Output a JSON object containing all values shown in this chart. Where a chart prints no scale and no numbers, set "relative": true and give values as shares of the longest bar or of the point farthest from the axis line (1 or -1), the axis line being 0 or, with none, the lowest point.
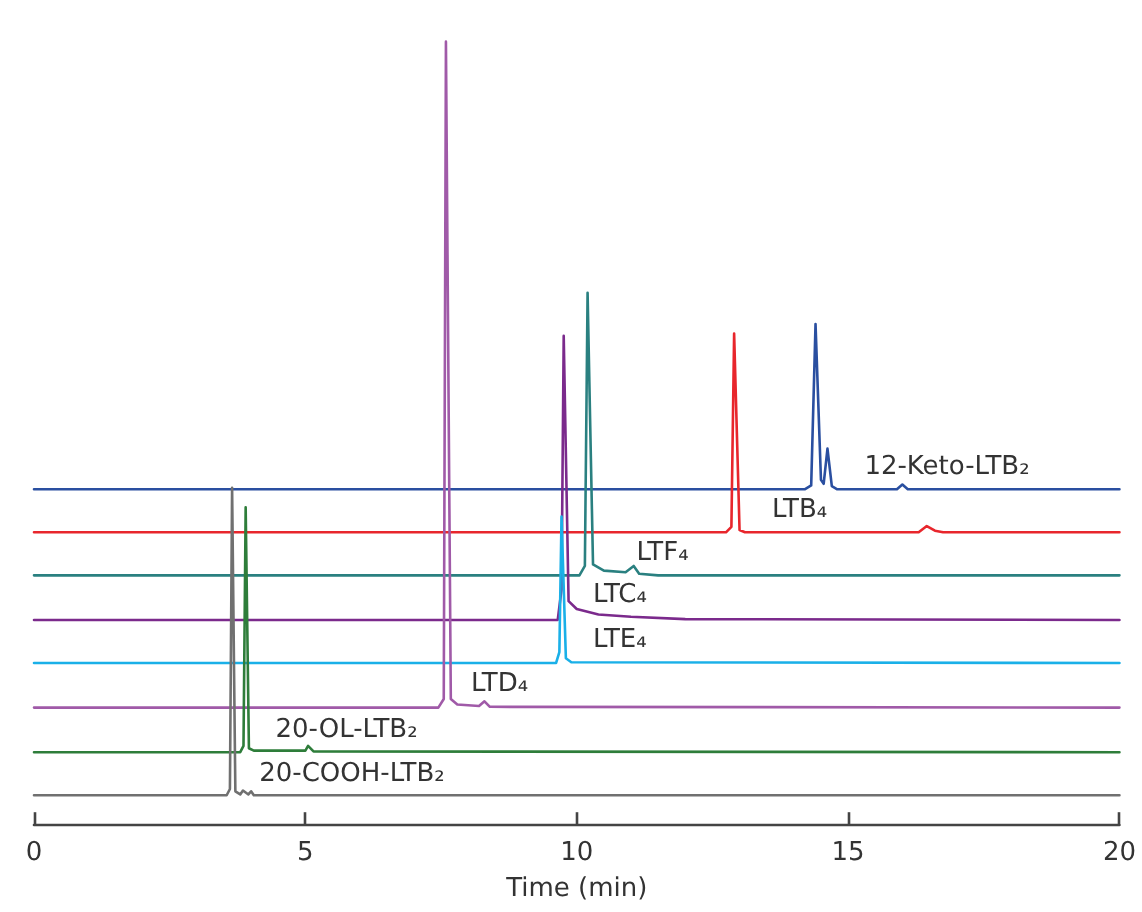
{
  "chart_data": {
    "type": "line",
    "relative": true,
    "xlabel": "Time (min)",
    "xlim": [
      0,
      20
    ],
    "xticks": [
      0,
      5,
      10,
      15,
      20
    ],
    "grid": false,
    "marker": "none",
    "line_style": "solid",
    "tick_labels": "x",
    "series": [
      {
        "color": "#2a4fa0",
        "x": [
          0,
          14.2,
          14.32,
          14.4,
          14.5,
          14.55,
          14.62,
          14.7,
          14.8,
          15.9,
          16,
          16.1,
          20
        ],
        "values": [
          0.428,
          0.428,
          0.433,
          0.639,
          0.44,
          0.435,
          0.48,
          0.432,
          0.428,
          0.428,
          0.434,
          0.428,
          0.428
        ]
      },
      {
        "color": "#e8262c",
        "x": [
          0,
          12.75,
          12.85,
          12.9,
          13,
          13.1,
          16.3,
          16.45,
          16.6,
          16.75,
          20
        ],
        "values": [
          0.373,
          0.373,
          0.38,
          0.627,
          0.376,
          0.373,
          0.373,
          0.381,
          0.375,
          0.373,
          0.373
        ]
      },
      {
        "color": "#2a8080",
        "x": [
          0,
          10.05,
          10.15,
          10.2,
          10.3,
          10.5,
          10.9,
          11.05,
          11.15,
          11.5,
          20
        ],
        "values": [
          0.318,
          0.318,
          0.33,
          0.679,
          0.332,
          0.324,
          0.322,
          0.33,
          0.32,
          0.318,
          0.318
        ]
      },
      {
        "color": "#7b2a8c",
        "x": [
          0,
          9.65,
          9.72,
          9.76,
          9.85,
          10,
          10.4,
          11,
          12,
          20
        ],
        "values": [
          0.261,
          0.261,
          0.3,
          0.624,
          0.285,
          0.275,
          0.268,
          0.265,
          0.262,
          0.261
        ]
      },
      {
        "color": "#1ab0e8",
        "x": [
          0,
          9.62,
          9.68,
          9.72,
          9.8,
          9.9,
          20
        ],
        "values": [
          0.206,
          0.206,
          0.22,
          0.393,
          0.212,
          0.207,
          0.206
        ]
      },
      {
        "color": "#a05aa8",
        "x": [
          0,
          7.45,
          7.55,
          7.59,
          7.68,
          7.8,
          8.2,
          8.3,
          8.4,
          20
        ],
        "values": [
          0.149,
          0.149,
          0.16,
          1,
          0.16,
          0.153,
          0.151,
          0.157,
          0.15,
          0.149
        ]
      },
      {
        "color": "#2e7d3a",
        "x": [
          0,
          3.8,
          3.86,
          3.9,
          3.96,
          4.05,
          5,
          5.05,
          5.15,
          20
        ],
        "values": [
          0.092,
          0.092,
          0.1,
          0.405,
          0.097,
          0.094,
          0.094,
          0.1,
          0.093,
          0.092
        ]
      },
      {
        "color": "#707070",
        "x": [
          0,
          3.55,
          3.61,
          3.65,
          3.71,
          3.8,
          3.85,
          3.95,
          4,
          4.05,
          20
        ],
        "values": [
          0.037,
          0.037,
          0.045,
          0.43,
          0.042,
          0.038,
          0.043,
          0.038,
          0.042,
          0.037,
          0.037
        ]
      }
    ],
    "annotations": [
      {
        "text": "12-Keto-LTB₂",
        "x": 15.3,
        "y": 0.44
      },
      {
        "text": "LTB₄",
        "x": 13.6,
        "y": 0.385
      },
      {
        "text": "LTF₄",
        "x": 11.1,
        "y": 0.33
      },
      {
        "text": "LTC₄",
        "x": 10.3,
        "y": 0.276
      },
      {
        "text": "LTE₄",
        "x": 10.3,
        "y": 0.219
      },
      {
        "text": "LTD₄",
        "x": 8.05,
        "y": 0.162
      },
      {
        "text": "20-OL-LTB₂",
        "x": 4.45,
        "y": 0.104
      },
      {
        "text": "20-COOH-LTB₂",
        "x": 4.15,
        "y": 0.047
      }
    ]
  }
}
